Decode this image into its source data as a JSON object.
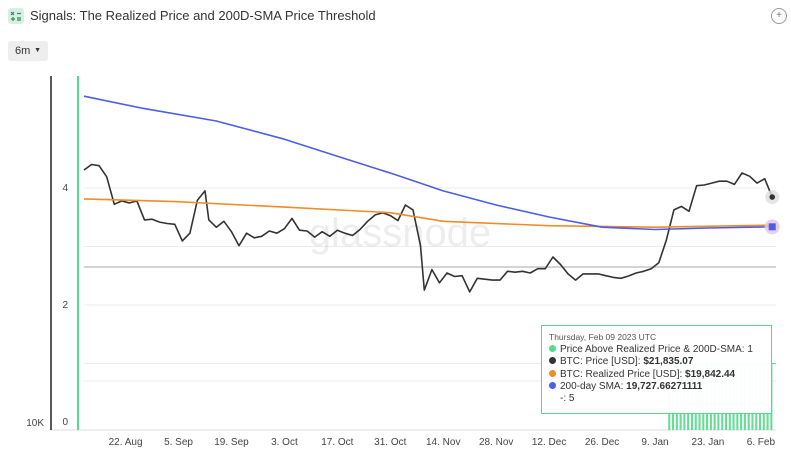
{
  "header": {
    "title": "Signals: The Realized Price and 200D-SMA Price Threshold",
    "app_icon": "signals-icon",
    "settings_icon": "settings-icon"
  },
  "toolbar": {
    "range_label": "6m",
    "range_icon": "chevron-down-icon"
  },
  "watermark": "glassnode",
  "colors": {
    "signal": "#55d98a",
    "price": "#333333",
    "realized": "#f28c28",
    "sma": "#4a5ee8",
    "threshold": "#cccccc"
  },
  "tooltip": {
    "date": "Thursday, Feb 09 2023 UTC",
    "rows": [
      {
        "label": "Price Above Realized Price & 200D-SMA:",
        "value": "1",
        "color": "#55d98a"
      },
      {
        "label": "BTC: Price [USD]:",
        "value": "$21,835.07",
        "color": "#333333"
      },
      {
        "label": "BTC: Realized Price [USD]:",
        "value": "$19,842.44",
        "color": "#f28c28"
      },
      {
        "label": "200-day SMA:",
        "value": "19,727.66271111",
        "color": "#4a5ee8"
      },
      {
        "label": "-:",
        "value": "5",
        "color": ""
      }
    ]
  },
  "chart_data": {
    "type": "line",
    "x_axis": {
      "type": "time",
      "range": [
        "2022-08-11",
        "2023-02-10"
      ],
      "tick_labels": [
        "22. Aug",
        "5. Sep",
        "19. Sep",
        "3. Oct",
        "17. Oct",
        "31. Oct",
        "14. Nov",
        "28. Nov",
        "12. Dec",
        "26. Dec",
        "9. Jan",
        "23. Jan",
        "6. Feb"
      ],
      "tick_dates": [
        "2022-08-22",
        "2022-09-05",
        "2022-09-19",
        "2022-10-03",
        "2022-10-17",
        "2022-10-31",
        "2022-11-14",
        "2022-11-28",
        "2022-12-12",
        "2022-12-26",
        "2023-01-09",
        "2023-01-23",
        "2023-02-06"
      ]
    },
    "y_axis_left": {
      "scale": "log",
      "tick_labels": [
        "10K"
      ],
      "tick_values": [
        10000
      ],
      "range": [
        10000,
        30000
      ]
    },
    "y_axis_right": {
      "tick_labels": [
        "0",
        "2",
        "4"
      ],
      "tick_values": [
        0,
        2,
        4
      ],
      "range": [
        0,
        5.5
      ]
    },
    "threshold": 2.65,
    "series": [
      {
        "name": "BTC: Price [USD]",
        "axis": "left",
        "points": [
          [
            "2022-08-11",
            23950
          ],
          [
            "2022-08-13",
            24400
          ],
          [
            "2022-08-15",
            24300
          ],
          [
            "2022-08-17",
            23400
          ],
          [
            "2022-08-19",
            21300
          ],
          [
            "2022-08-21",
            21550
          ],
          [
            "2022-08-23",
            21400
          ],
          [
            "2022-08-25",
            21550
          ],
          [
            "2022-08-27",
            20200
          ],
          [
            "2022-08-29",
            20250
          ],
          [
            "2022-08-31",
            20050
          ],
          [
            "2022-09-02",
            19950
          ],
          [
            "2022-09-04",
            19900
          ],
          [
            "2022-09-06",
            18800
          ],
          [
            "2022-09-08",
            19300
          ],
          [
            "2022-09-10",
            21600
          ],
          [
            "2022-09-12",
            22300
          ],
          [
            "2022-09-13",
            20200
          ],
          [
            "2022-09-15",
            19700
          ],
          [
            "2022-09-17",
            20100
          ],
          [
            "2022-09-19",
            19400
          ],
          [
            "2022-09-21",
            18500
          ],
          [
            "2022-09-23",
            19300
          ],
          [
            "2022-09-25",
            19000
          ],
          [
            "2022-09-27",
            19100
          ],
          [
            "2022-09-29",
            19450
          ],
          [
            "2022-10-01",
            19300
          ],
          [
            "2022-10-03",
            19600
          ],
          [
            "2022-10-05",
            20300
          ],
          [
            "2022-10-07",
            19500
          ],
          [
            "2022-10-09",
            19450
          ],
          [
            "2022-10-11",
            19050
          ],
          [
            "2022-10-13",
            19400
          ],
          [
            "2022-10-15",
            19100
          ],
          [
            "2022-10-17",
            19500
          ],
          [
            "2022-10-19",
            19300
          ],
          [
            "2022-10-21",
            19150
          ],
          [
            "2022-10-23",
            19550
          ],
          [
            "2022-10-25",
            20100
          ],
          [
            "2022-10-27",
            20550
          ],
          [
            "2022-10-29",
            20700
          ],
          [
            "2022-10-31",
            20500
          ],
          [
            "2022-11-02",
            20150
          ],
          [
            "2022-11-04",
            21250
          ],
          [
            "2022-11-06",
            20900
          ],
          [
            "2022-11-08",
            18500
          ],
          [
            "2022-11-09",
            15900
          ],
          [
            "2022-11-11",
            17050
          ],
          [
            "2022-11-13",
            16300
          ],
          [
            "2022-11-15",
            16850
          ],
          [
            "2022-11-17",
            16650
          ],
          [
            "2022-11-19",
            16700
          ],
          [
            "2022-11-21",
            15800
          ],
          [
            "2022-11-23",
            16550
          ],
          [
            "2022-11-25",
            16500
          ],
          [
            "2022-11-27",
            16450
          ],
          [
            "2022-11-29",
            16450
          ],
          [
            "2022-12-01",
            16950
          ],
          [
            "2022-12-03",
            16900
          ],
          [
            "2022-12-05",
            16950
          ],
          [
            "2022-12-07",
            16850
          ],
          [
            "2022-12-09",
            17100
          ],
          [
            "2022-12-11",
            17100
          ],
          [
            "2022-12-13",
            17800
          ],
          [
            "2022-12-15",
            17350
          ],
          [
            "2022-12-17",
            16800
          ],
          [
            "2022-12-19",
            16450
          ],
          [
            "2022-12-21",
            16800
          ],
          [
            "2022-12-23",
            16800
          ],
          [
            "2022-12-25",
            16800
          ],
          [
            "2022-12-27",
            16700
          ],
          [
            "2022-12-29",
            16600
          ],
          [
            "2022-12-31",
            16550
          ],
          [
            "2023-01-02",
            16680
          ],
          [
            "2023-01-04",
            16850
          ],
          [
            "2023-01-06",
            16950
          ],
          [
            "2023-01-08",
            17100
          ],
          [
            "2023-01-10",
            17450
          ],
          [
            "2023-01-12",
            18850
          ],
          [
            "2023-01-14",
            20900
          ],
          [
            "2023-01-16",
            21150
          ],
          [
            "2023-01-18",
            20800
          ],
          [
            "2023-01-20",
            22700
          ],
          [
            "2023-01-22",
            22750
          ],
          [
            "2023-01-24",
            22900
          ],
          [
            "2023-01-26",
            23050
          ],
          [
            "2023-01-28",
            23050
          ],
          [
            "2023-01-30",
            22800
          ],
          [
            "2023-02-01",
            23700
          ],
          [
            "2023-02-03",
            23450
          ],
          [
            "2023-02-05",
            22900
          ],
          [
            "2023-02-07",
            23250
          ],
          [
            "2023-02-09",
            21835
          ]
        ]
      },
      {
        "name": "BTC: Realized Price [USD]",
        "axis": "left",
        "points": [
          [
            "2022-08-11",
            21700
          ],
          [
            "2022-09-04",
            21500
          ],
          [
            "2022-10-03",
            21100
          ],
          [
            "2022-10-31",
            20700
          ],
          [
            "2022-11-14",
            20100
          ],
          [
            "2022-12-12",
            19800
          ],
          [
            "2023-01-09",
            19700
          ],
          [
            "2023-02-09",
            19842
          ]
        ]
      },
      {
        "name": "200-day SMA",
        "axis": "left",
        "points": [
          [
            "2022-08-11",
            30800
          ],
          [
            "2022-08-26",
            29600
          ],
          [
            "2022-09-15",
            28300
          ],
          [
            "2022-10-03",
            26600
          ],
          [
            "2022-10-17",
            25100
          ],
          [
            "2022-11-01",
            23600
          ],
          [
            "2022-11-14",
            22300
          ],
          [
            "2022-11-28",
            21250
          ],
          [
            "2022-12-12",
            20400
          ],
          [
            "2022-12-26",
            19700
          ],
          [
            "2023-01-09",
            19550
          ],
          [
            "2023-01-23",
            19650
          ],
          [
            "2023-02-09",
            19728
          ]
        ]
      },
      {
        "name": "Price Above Realized Price & 200D-SMA",
        "axis": "right",
        "type": "column",
        "points": [
          [
            "2023-01-13",
            1
          ],
          [
            "2023-01-14",
            1
          ],
          [
            "2023-01-15",
            1
          ],
          [
            "2023-01-16",
            1
          ],
          [
            "2023-01-17",
            1
          ],
          [
            "2023-01-18",
            1
          ],
          [
            "2023-01-19",
            1
          ],
          [
            "2023-01-20",
            1
          ],
          [
            "2023-01-21",
            1
          ],
          [
            "2023-01-22",
            1
          ],
          [
            "2023-01-23",
            1
          ],
          [
            "2023-01-24",
            1
          ],
          [
            "2023-01-25",
            1
          ],
          [
            "2023-01-26",
            1
          ],
          [
            "2023-01-27",
            1
          ],
          [
            "2023-01-28",
            1
          ],
          [
            "2023-01-29",
            1
          ],
          [
            "2023-01-30",
            1
          ],
          [
            "2023-01-31",
            1
          ],
          [
            "2023-02-01",
            1
          ],
          [
            "2023-02-02",
            1
          ],
          [
            "2023-02-03",
            1
          ],
          [
            "2023-02-04",
            1
          ],
          [
            "2023-02-05",
            1
          ],
          [
            "2023-02-06",
            1
          ],
          [
            "2023-02-07",
            1
          ],
          [
            "2023-02-08",
            1
          ],
          [
            "2023-02-09",
            1
          ]
        ]
      }
    ]
  }
}
